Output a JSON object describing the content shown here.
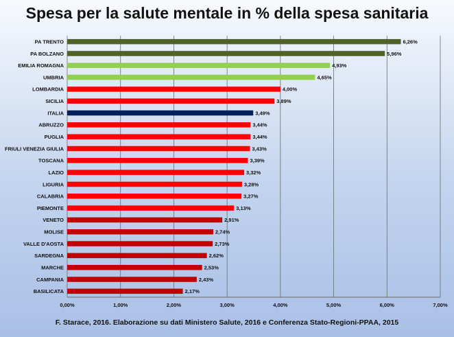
{
  "page": {
    "title": "Spesa per la salute mentale in % della spesa sanitaria",
    "source": "F. Starace, 2016.  Elaborazione su dati Ministero Salute, 2016 e Conferenza Stato-Regioni-PPAA,  2015"
  },
  "chart_data": {
    "type": "bar",
    "orientation": "horizontal",
    "title": "Spesa per la salute mentale in % della spesa sanitaria",
    "xlabel": "",
    "ylabel": "",
    "xlim": [
      0,
      7
    ],
    "x_ticks": [
      "0,00%",
      "1,00%",
      "2,00%",
      "3,00%",
      "4,00%",
      "5,00%",
      "6,00%",
      "7,00%"
    ],
    "grid": true,
    "categories": [
      "PA TRENTO",
      "PA BOLZANO",
      "EMILIA ROMAGNA",
      "UMBRIA",
      "LOMBARDIA",
      "SICILIA",
      "ITALIA",
      "ABRUZZO",
      "PUGLIA",
      "FRIULI VENEZIA GIULIA",
      "TOSCANA",
      "LAZIO",
      "LIGURIA",
      "CALABRIA",
      "PIEMONTE",
      "VENETO",
      "MOLISE",
      "VALLE D'AOSTA",
      "SARDEGNA",
      "MARCHE",
      "CAMPANIA",
      "BASILICATA"
    ],
    "values": [
      6.26,
      5.96,
      4.93,
      4.65,
      4.0,
      3.89,
      3.49,
      3.44,
      3.44,
      3.43,
      3.39,
      3.32,
      3.28,
      3.27,
      3.13,
      2.91,
      2.74,
      2.73,
      2.62,
      2.53,
      2.43,
      2.17
    ],
    "value_labels": [
      "6,26%",
      "5,96%",
      "4,93%",
      "4,65%",
      "4,00%",
      "3,89%",
      "3,49%",
      "3,44%",
      "3,44%",
      "3,43%",
      "3,39%",
      "3,32%",
      "3,28%",
      "3,27%",
      "3,13%",
      "2,91%",
      "2,74%",
      "2,73%",
      "2,62%",
      "2,53%",
      "2,43%",
      "2,17%"
    ],
    "bar_colors": [
      "#4f6228",
      "#4f6228",
      "#92d050",
      "#92d050",
      "#ff0000",
      "#ff0000",
      "#002060",
      "#ff0000",
      "#ff0000",
      "#ff0000",
      "#ff0000",
      "#ff0000",
      "#ff0000",
      "#ff0000",
      "#ff0000",
      "#c00000",
      "#c00000",
      "#c00000",
      "#c00000",
      "#c00000",
      "#c00000",
      "#c00000"
    ]
  }
}
